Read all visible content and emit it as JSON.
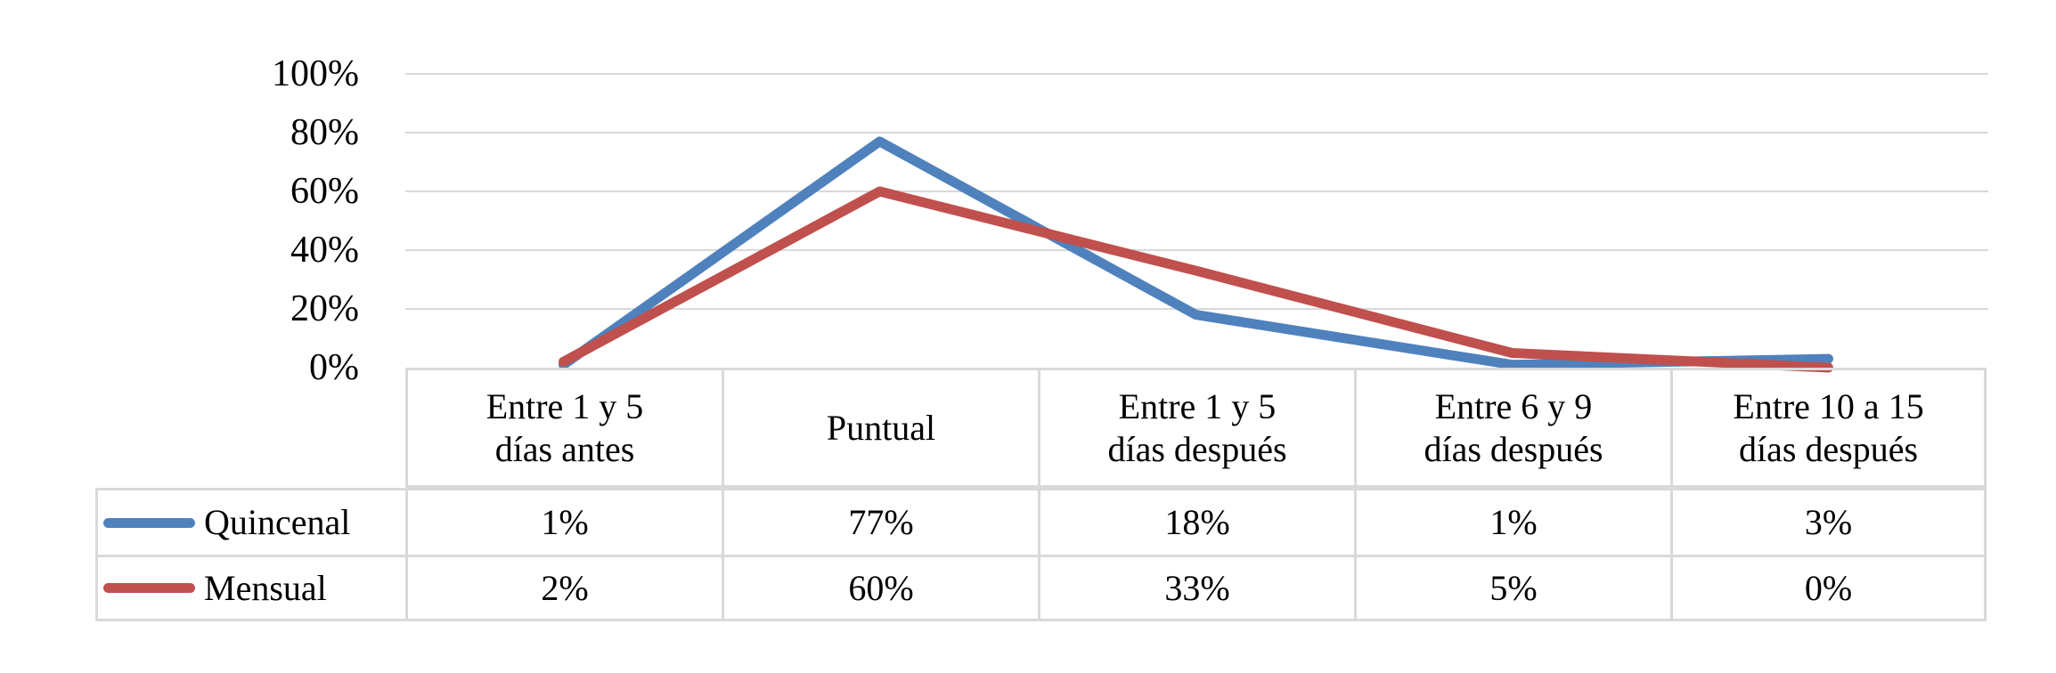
{
  "chart_data": {
    "type": "line",
    "title": "",
    "xlabel": "",
    "ylabel": "",
    "categories": [
      "Entre 1 y 5 días antes",
      "Puntual",
      "Entre 1 y 5 días después",
      "Entre 6 y 9 días después",
      "Entre 10 a 15 días después"
    ],
    "category_lines": [
      [
        "Entre 1 y 5",
        "días antes"
      ],
      [
        "Puntual"
      ],
      [
        "Entre 1 y 5",
        "días después"
      ],
      [
        "Entre 6 y 9",
        "días después"
      ],
      [
        "Entre 10 a 15",
        "días después"
      ]
    ],
    "series": [
      {
        "name": "Quincenal",
        "color": "#4F81BD",
        "values": [
          1,
          77,
          18,
          1,
          3
        ],
        "display_values": [
          "1%",
          "77%",
          "18%",
          "1%",
          "3%"
        ]
      },
      {
        "name": "Mensual",
        "color": "#C0504D",
        "values": [
          2,
          60,
          33,
          5,
          0
        ],
        "display_values": [
          "2%",
          "60%",
          "33%",
          "5%",
          "0%"
        ]
      }
    ],
    "y_ticks": [
      {
        "value": 100,
        "label": "100%"
      },
      {
        "value": 80,
        "label": "80%"
      },
      {
        "value": 60,
        "label": "60%"
      },
      {
        "value": 40,
        "label": "40%"
      },
      {
        "value": 20,
        "label": "20%"
      },
      {
        "value": 0,
        "label": "0%"
      }
    ],
    "ylim": [
      0,
      100
    ],
    "grid": true,
    "legend_position": "table-rows-left",
    "colors": {
      "gridline": "#D9D9D9",
      "table_border": "#D9D9D9",
      "text": "#000000",
      "background": "#FFFFFF"
    }
  }
}
